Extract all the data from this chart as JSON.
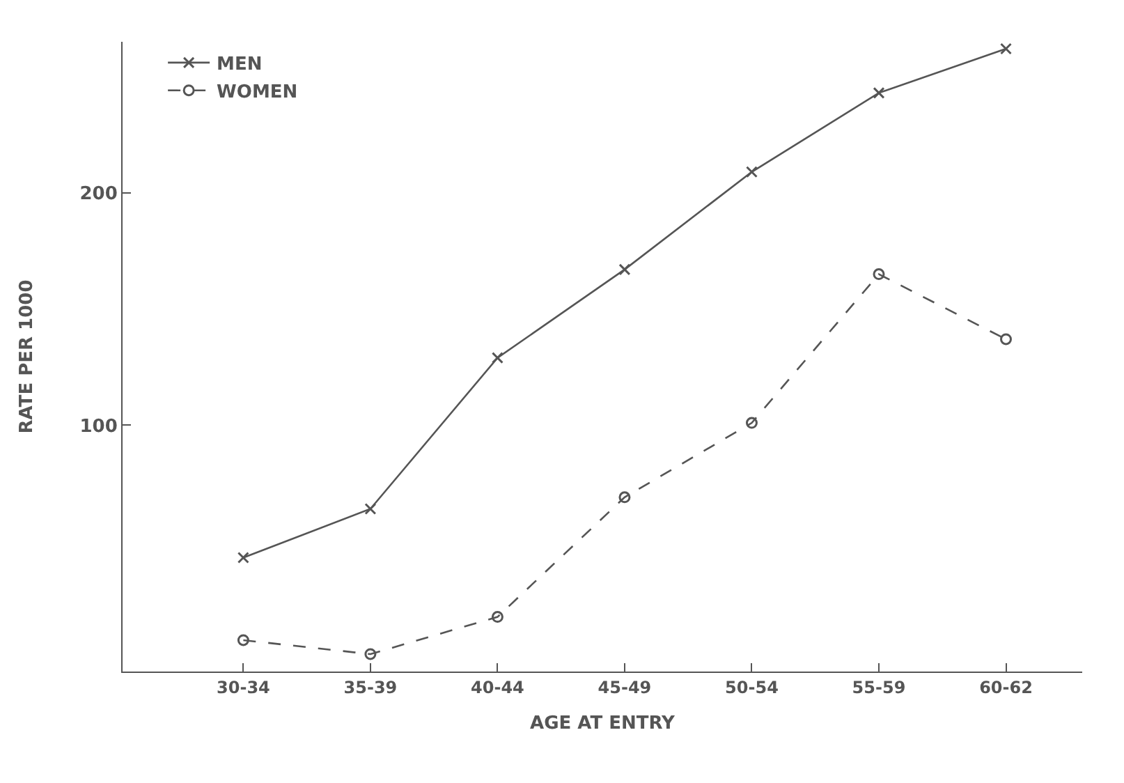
{
  "chart_data": {
    "type": "line",
    "xlabel": "AGE AT ENTRY",
    "ylabel": "RATE PER 1000",
    "categories": [
      "30-34",
      "35-39",
      "40-44",
      "45-49",
      "50-54",
      "55-59",
      "60-62"
    ],
    "series": [
      {
        "name": "MEN",
        "color": "#555555",
        "marker": "cross",
        "line_style": "solid",
        "values": [
          43,
          64,
          129,
          167,
          209,
          243,
          262
        ]
      },
      {
        "name": "WOMEN",
        "color": "#555555",
        "marker": "circle",
        "line_style": "dashed",
        "values": [
          7.5,
          1.5,
          17.5,
          69,
          101,
          165,
          137
        ]
      }
    ],
    "ylim": [
      -6,
      265
    ],
    "yticks": [
      100,
      200
    ],
    "grid": false,
    "legend": "top left"
  }
}
